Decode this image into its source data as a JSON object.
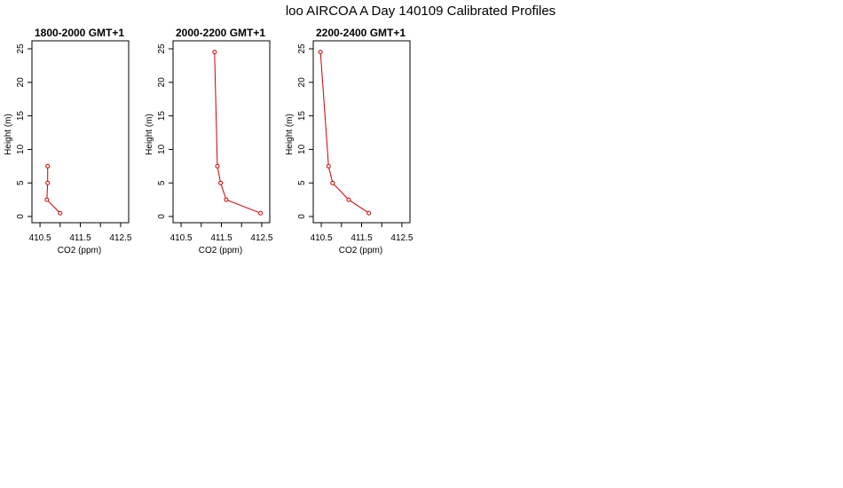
{
  "page": {
    "title": "loo AIRCOA A  Day 140109  Calibrated Profiles"
  },
  "colors": {
    "series": "#cc0000",
    "axes": "#000000",
    "background": "#ffffff"
  },
  "chart_data": [
    {
      "type": "line",
      "title": "1800-2000 GMT+1",
      "xlabel": "CO2 (ppm)",
      "ylabel": "Height (m)",
      "xlim": [
        410.3,
        412.7
      ],
      "ylim": [
        0,
        25
      ],
      "xticks": [
        "410.5",
        "411.5",
        "412.5"
      ],
      "yticks": [
        "0",
        "5",
        "10",
        "15",
        "20",
        "25"
      ],
      "series": [
        {
          "x": [
            411.0,
            410.67,
            410.69,
            410.69
          ],
          "y": [
            0.5,
            2.5,
            5.0,
            7.5
          ]
        }
      ]
    },
    {
      "type": "line",
      "title": "2000-2200 GMT+1",
      "xlabel": "CO2 (ppm)",
      "ylabel": "Height (m)",
      "xlim": [
        410.3,
        412.7
      ],
      "ylim": [
        0,
        25
      ],
      "xticks": [
        "410.5",
        "411.5",
        "412.5"
      ],
      "yticks": [
        "0",
        "5",
        "10",
        "15",
        "20",
        "25"
      ],
      "series": [
        {
          "x": [
            412.47,
            411.62,
            411.48,
            411.4,
            411.33
          ],
          "y": [
            0.5,
            2.5,
            5.0,
            7.5,
            24.5
          ]
        }
      ]
    },
    {
      "type": "line",
      "title": "2200-2400 GMT+1",
      "xlabel": "CO2 (ppm)",
      "ylabel": "Height (m)",
      "xlim": [
        410.3,
        412.7
      ],
      "ylim": [
        0,
        25
      ],
      "xticks": [
        "410.5",
        "411.5",
        "412.5"
      ],
      "yticks": [
        "0",
        "5",
        "10",
        "15",
        "20",
        "25"
      ],
      "series": [
        {
          "x": [
            411.68,
            411.18,
            410.78,
            410.68,
            410.48
          ],
          "y": [
            0.5,
            2.5,
            5.0,
            7.5,
            24.5
          ]
        }
      ]
    }
  ]
}
